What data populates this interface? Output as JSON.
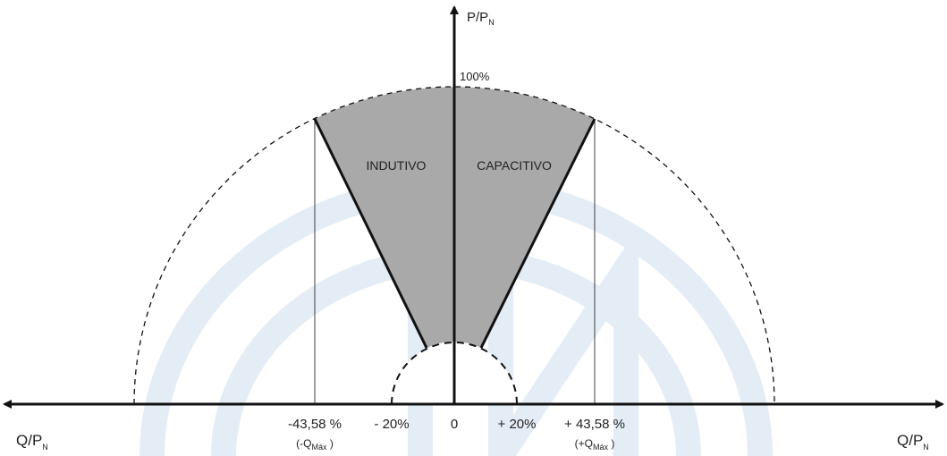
{
  "axes": {
    "vertical_label": {
      "main": "P/P",
      "sub": "N"
    },
    "horizontal_label_left": {
      "main": "Q/P",
      "sub": "N"
    },
    "horizontal_label_right": {
      "main": "Q/P",
      "sub": "N"
    },
    "top_label": "100%"
  },
  "regions": {
    "left": "INDUTIVO",
    "right": "CAPACITIVO"
  },
  "ticks": [
    {
      "label": "-43,58 %",
      "note": {
        "open": "(-Q",
        "sub": "Máx",
        "close": " )"
      }
    },
    {
      "label": "- 20%"
    },
    {
      "label": "0"
    },
    {
      "label": "+ 20%"
    },
    {
      "label": "+ 43,58 %",
      "note": {
        "open": "(+Q",
        "sub": "Máx",
        "close": " )"
      }
    }
  ]
}
